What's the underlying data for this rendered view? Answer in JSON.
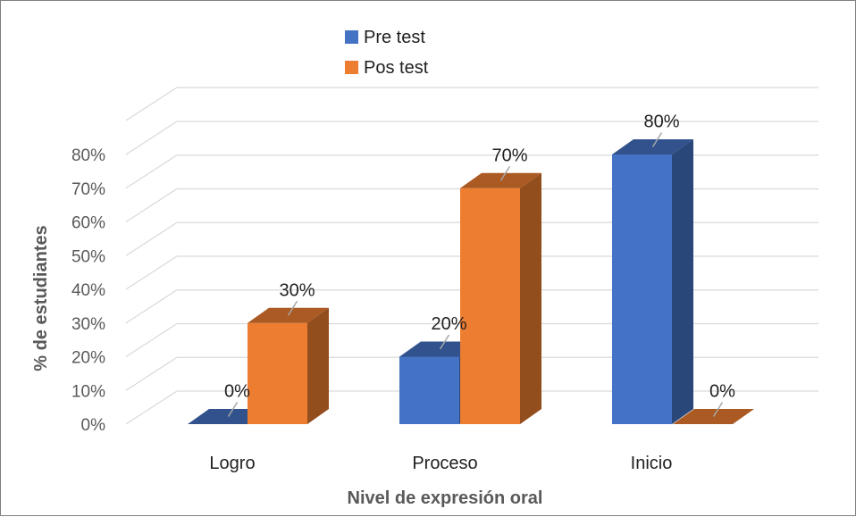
{
  "chart_data": {
    "type": "bar",
    "categories": [
      "Logro",
      "Proceso",
      "Inicio"
    ],
    "series": [
      {
        "name": "Pre test",
        "values": [
          0,
          20,
          80
        ],
        "labels": [
          "0%",
          "20%",
          "80%"
        ],
        "color": "#4472C4"
      },
      {
        "name": "Pos test",
        "values": [
          0.3,
          0.7,
          0
        ],
        "labels": [
          "30%",
          "70%",
          "0%"
        ],
        "color": "#ED7D31"
      }
    ],
    "xlabel": "Nivel de expresión oral",
    "ylabel": "% de estudiantes",
    "ylim": [
      0,
      80
    ],
    "yticks": [
      "0%",
      "10%",
      "20%",
      "30%",
      "40%",
      "50%",
      "60%",
      "70%",
      "80%"
    ],
    "grid": true,
    "legend_position": "top-center",
    "style": "3d-column"
  }
}
